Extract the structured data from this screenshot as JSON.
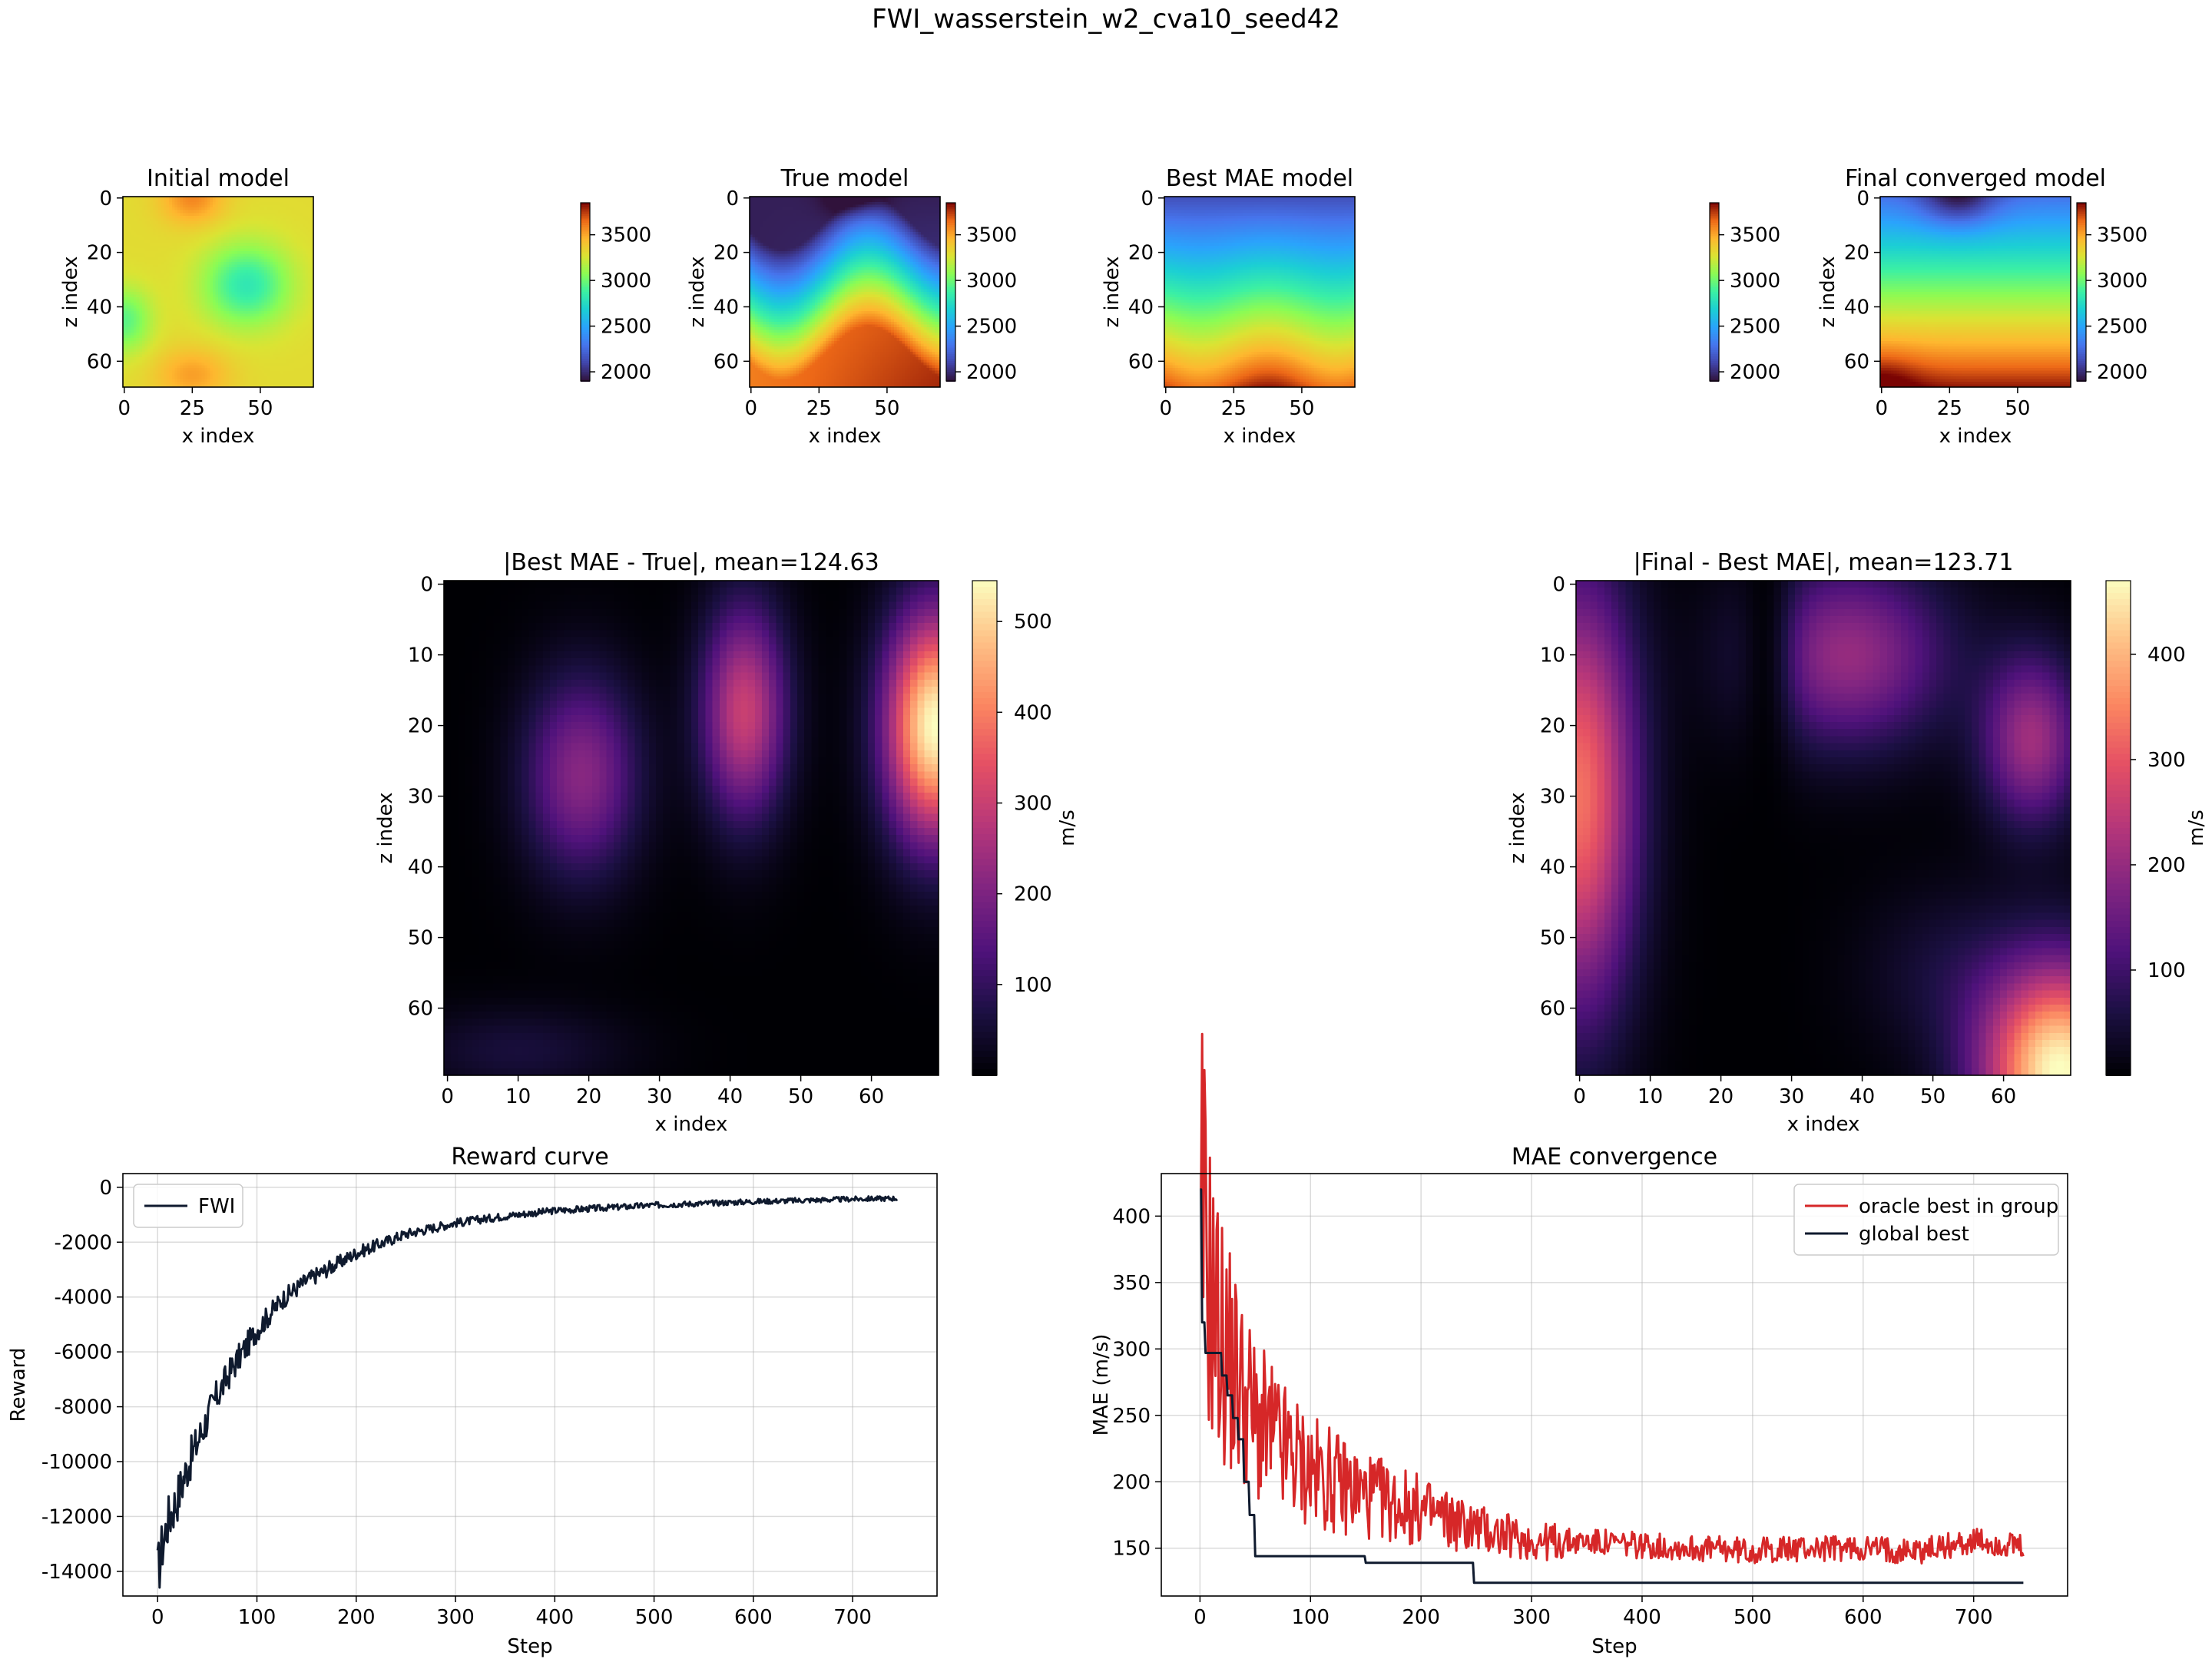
{
  "figure": {
    "title": "FWI_wasserstein_w2_cva10_seed42"
  },
  "chart_data": [
    {
      "type": "heatmap",
      "id": "initial",
      "title": "Initial model",
      "xlabel": "x index",
      "ylabel": "z index",
      "x_range": [
        0,
        69
      ],
      "z_range": [
        0,
        69
      ],
      "x_ticks": [
        "0",
        "25",
        "50"
      ],
      "z_ticks": [
        "0",
        "20",
        "40",
        "60"
      ],
      "colormap": "turbo",
      "colorbar_range": [
        1900,
        3850
      ],
      "colorbar_ticks": [
        "2000",
        "2500",
        "3000",
        "3500"
      ]
    },
    {
      "type": "heatmap",
      "id": "true",
      "title": "True model",
      "xlabel": "x index",
      "ylabel": "z index",
      "x_range": [
        0,
        69
      ],
      "z_range": [
        0,
        69
      ],
      "x_ticks": [
        "0",
        "25",
        "50"
      ],
      "z_ticks": [
        "0",
        "20",
        "40",
        "60"
      ],
      "colormap": "turbo",
      "colorbar_range": [
        1900,
        3850
      ],
      "colorbar_ticks": [
        "2000",
        "2500",
        "3000",
        "3500"
      ]
    },
    {
      "type": "heatmap",
      "id": "best",
      "title": "Best MAE model",
      "xlabel": "x index",
      "ylabel": "z index",
      "x_range": [
        0,
        69
      ],
      "z_range": [
        0,
        69
      ],
      "x_ticks": [
        "0",
        "25",
        "50"
      ],
      "z_ticks": [
        "0",
        "20",
        "40",
        "60"
      ],
      "colormap": "turbo",
      "colorbar_range": [
        1900,
        3850
      ],
      "colorbar_ticks": [
        "2000",
        "2500",
        "3000",
        "3500"
      ]
    },
    {
      "type": "heatmap",
      "id": "final",
      "title": "Final converged model",
      "xlabel": "x index",
      "ylabel": "z index",
      "x_range": [
        0,
        69
      ],
      "z_range": [
        0,
        69
      ],
      "x_ticks": [
        "0",
        "25",
        "50"
      ],
      "z_ticks": [
        "0",
        "20",
        "40",
        "60"
      ],
      "colormap": "turbo",
      "colorbar_range": [
        1900,
        3850
      ],
      "colorbar_ticks": [
        "2000",
        "2500",
        "3000",
        "3500"
      ]
    },
    {
      "type": "heatmap",
      "id": "diff1",
      "title": "|Best MAE - True|, mean=124.63",
      "xlabel": "x index",
      "ylabel": "z index",
      "x_range": [
        0,
        69
      ],
      "z_range": [
        0,
        69
      ],
      "x_ticks": [
        "0",
        "10",
        "20",
        "30",
        "40",
        "50",
        "60"
      ],
      "z_ticks": [
        "0",
        "10",
        "20",
        "30",
        "40",
        "50",
        "60"
      ],
      "colormap": "magma",
      "colorbar_label": "m/s",
      "colorbar_range": [
        0,
        545
      ],
      "colorbar_ticks": [
        "100",
        "200",
        "300",
        "400",
        "500"
      ]
    },
    {
      "type": "heatmap",
      "id": "diff2",
      "title": "|Final - Best MAE|, mean=123.71",
      "xlabel": "x index",
      "ylabel": "z index",
      "x_range": [
        0,
        69
      ],
      "z_range": [
        0,
        69
      ],
      "x_ticks": [
        "0",
        "10",
        "20",
        "30",
        "40",
        "50",
        "60"
      ],
      "z_ticks": [
        "0",
        "10",
        "20",
        "30",
        "40",
        "50",
        "60"
      ],
      "colormap": "magma",
      "colorbar_label": "m/s",
      "colorbar_range": [
        0,
        470
      ],
      "colorbar_ticks": [
        "100",
        "200",
        "300",
        "400"
      ]
    },
    {
      "type": "line",
      "id": "reward",
      "title": "Reward curve",
      "xlabel": "Step",
      "ylabel": "Reward",
      "xlim": [
        -35,
        785
      ],
      "ylim": [
        -14900,
        500
      ],
      "x_ticks": [
        "0",
        "100",
        "200",
        "300",
        "400",
        "500",
        "600",
        "700"
      ],
      "y_ticks": [
        "-14000",
        "-12000",
        "-10000",
        "-8000",
        "-6000",
        "-4000",
        "-2000",
        "0"
      ],
      "grid": true,
      "legend_position": "top-left",
      "series": [
        {
          "name": "FWI",
          "color": "#0f1a2e",
          "x": [
            0,
            5,
            10,
            20,
            30,
            40,
            50,
            60,
            75,
            100,
            125,
            150,
            200,
            250,
            300,
            350,
            400,
            500,
            600,
            700,
            745
          ],
          "y": [
            -14100,
            -13000,
            -12200,
            -11300,
            -10200,
            -9300,
            -8400,
            -7600,
            -6600,
            -5200,
            -4100,
            -3400,
            -2400,
            -1700,
            -1300,
            -1050,
            -850,
            -650,
            -520,
            -430,
            -400
          ]
        }
      ]
    },
    {
      "type": "line",
      "id": "mae",
      "title": "MAE convergence",
      "xlabel": "Step",
      "ylabel": "MAE (m/s)",
      "xlim": [
        -35,
        785
      ],
      "ylim": [
        114,
        432
      ],
      "x_ticks": [
        "0",
        "100",
        "200",
        "300",
        "400",
        "500",
        "600",
        "700"
      ],
      "y_ticks": [
        "150",
        "200",
        "250",
        "300",
        "350",
        "400"
      ],
      "grid": true,
      "legend_position": "top-right",
      "series": [
        {
          "name": "oracle best in group",
          "color": "#d62728",
          "x": [
            0,
            5,
            10,
            20,
            30,
            40,
            50,
            75,
            100,
            150,
            200,
            250,
            300,
            350,
            400,
            450,
            500,
            550,
            600,
            650,
            700,
            745
          ],
          "y": [
            420,
            380,
            340,
            305,
            285,
            265,
            245,
            225,
            208,
            190,
            178,
            165,
            155,
            155,
            152,
            150,
            148,
            150,
            150,
            148,
            155,
            150
          ]
        },
        {
          "name": "global best",
          "color": "#0f1a2e",
          "x": [
            0,
            2,
            5,
            10,
            20,
            25,
            30,
            35,
            40,
            45,
            50,
            145,
            150,
            245,
            248,
            745
          ],
          "y": [
            420,
            320,
            297,
            297,
            280,
            265,
            248,
            232,
            200,
            175,
            144,
            144,
            139,
            139,
            124,
            124
          ]
        }
      ]
    }
  ]
}
